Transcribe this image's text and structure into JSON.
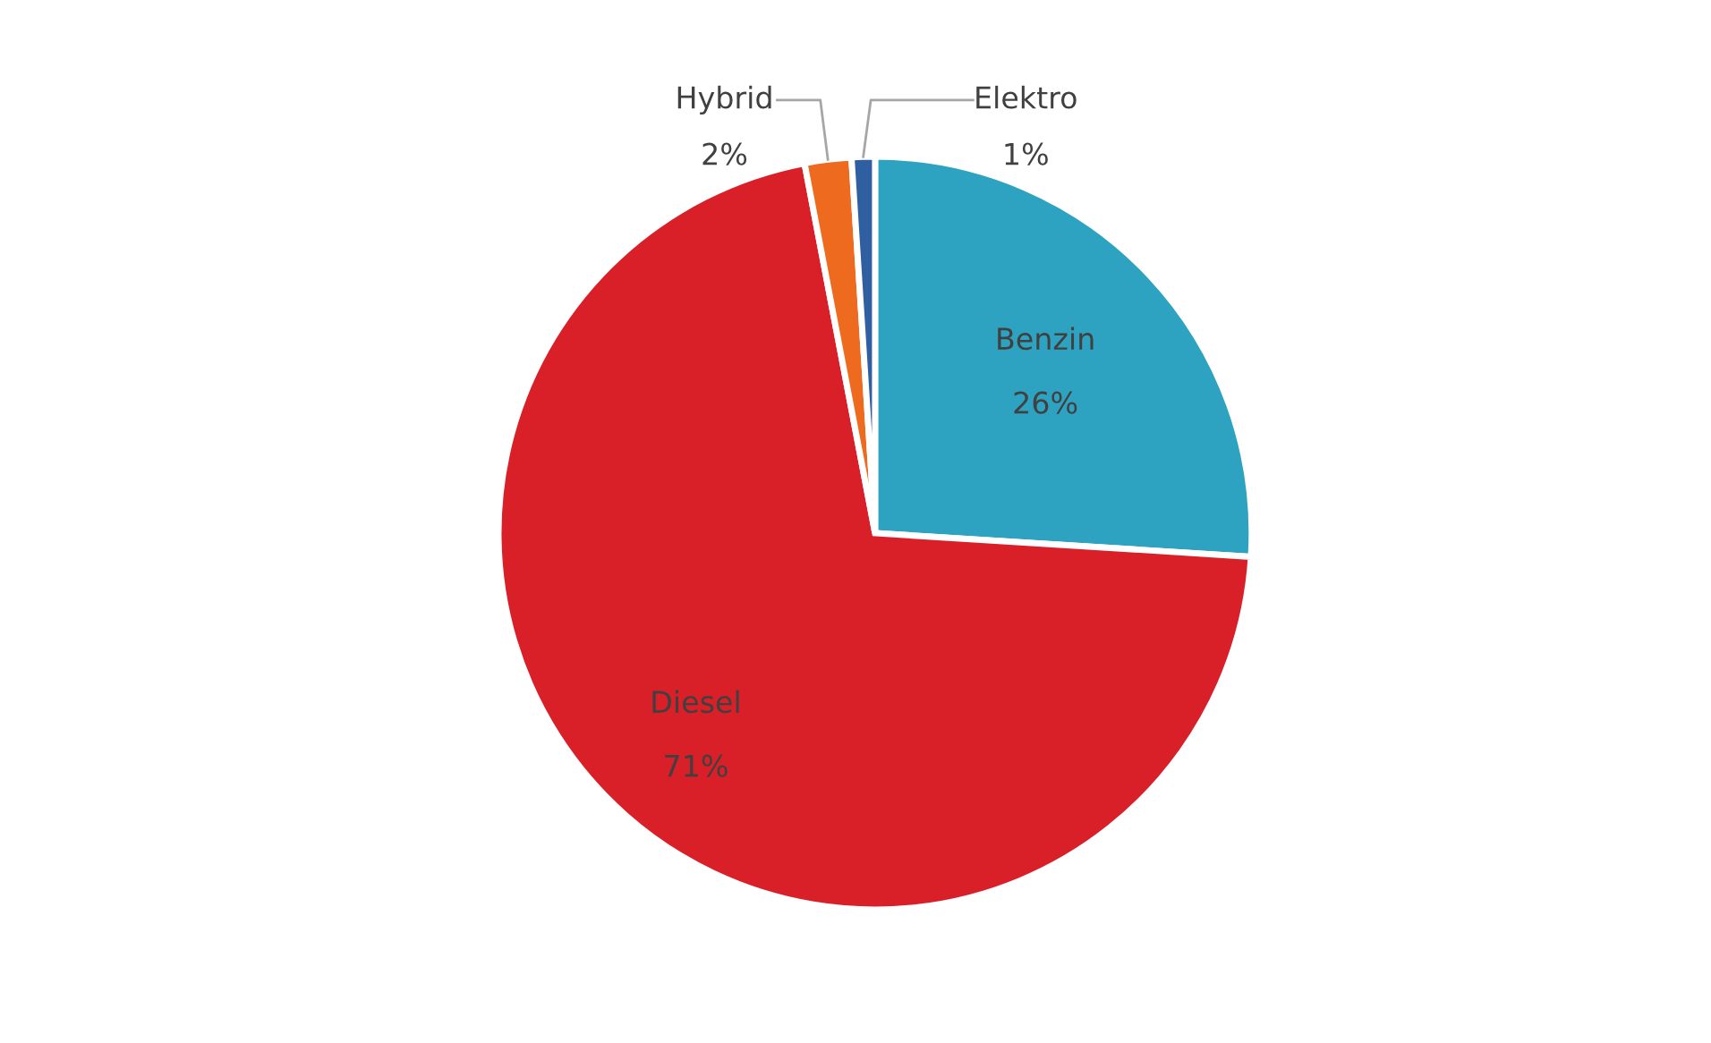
{
  "chart_data": {
    "type": "pie",
    "categories": [
      "Benzin",
      "Diesel",
      "Hybrid",
      "Elektro"
    ],
    "values": [
      26,
      71,
      2,
      1
    ],
    "colors": [
      "#2ea3c1",
      "#d91f27",
      "#ee6a1e",
      "#2f5fa0"
    ],
    "value_labels": [
      "26%",
      "71%",
      "2%",
      "1%"
    ],
    "legend": false
  }
}
